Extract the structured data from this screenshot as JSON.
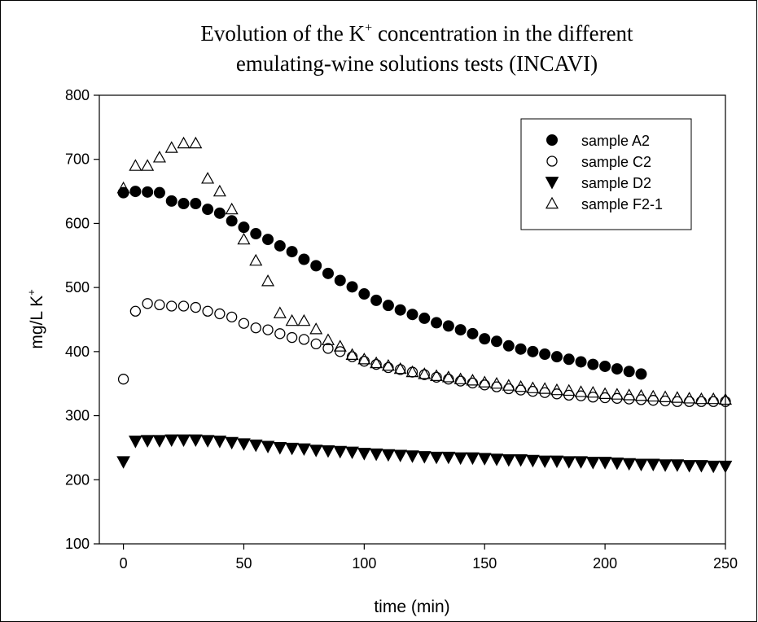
{
  "chart_data": {
    "type": "scatter",
    "title": {
      "line1_before": "Evolution of the K",
      "line1_sup": "+",
      "line1_after": " concentration in the different",
      "line2": "emulating-wine solutions tests (INCAVI)"
    },
    "xlabel": "time (min)",
    "ylabel": {
      "main": "mg/L K",
      "sup": "+"
    },
    "xlim": [
      -10,
      250
    ],
    "ylim": [
      100,
      800
    ],
    "xticks": [
      0,
      50,
      100,
      150,
      200,
      250
    ],
    "yticks": [
      100,
      200,
      300,
      400,
      500,
      600,
      700,
      800
    ],
    "grid": false,
    "legend_position": "top-right",
    "series": [
      {
        "name": "sample A2",
        "marker": "filled-circle",
        "x": [
          0,
          5,
          10,
          15,
          20,
          25,
          30,
          35,
          40,
          45,
          50,
          55,
          60,
          65,
          70,
          75,
          80,
          85,
          90,
          95,
          100,
          105,
          110,
          115,
          120,
          125,
          130,
          135,
          140,
          145,
          150,
          155,
          160,
          165,
          170,
          175,
          180,
          185,
          190,
          195,
          200,
          205,
          210,
          215
        ],
        "y": [
          648,
          650,
          649,
          648,
          635,
          631,
          631,
          622,
          616,
          604,
          594,
          584,
          575,
          565,
          556,
          544,
          534,
          522,
          511,
          501,
          490,
          480,
          472,
          465,
          458,
          452,
          445,
          440,
          434,
          428,
          420,
          416,
          409,
          404,
          400,
          396,
          392,
          388,
          384,
          380,
          377,
          373,
          369,
          365
        ]
      },
      {
        "name": "sample C2",
        "marker": "open-circle",
        "x": [
          0,
          5,
          10,
          15,
          20,
          25,
          30,
          35,
          40,
          45,
          50,
          55,
          60,
          65,
          70,
          75,
          80,
          85,
          90,
          95,
          100,
          105,
          110,
          115,
          120,
          125,
          130,
          135,
          140,
          145,
          150,
          155,
          160,
          165,
          170,
          175,
          180,
          185,
          190,
          195,
          200,
          205,
          210,
          215,
          220,
          225,
          230,
          235,
          240,
          245,
          250
        ],
        "y": [
          357,
          463,
          475,
          473,
          471,
          471,
          469,
          463,
          459,
          454,
          444,
          437,
          434,
          428,
          422,
          419,
          412,
          405,
          400,
          392,
          385,
          380,
          375,
          372,
          368,
          364,
          360,
          357,
          354,
          351,
          348,
          345,
          342,
          340,
          338,
          336,
          334,
          332,
          331,
          329,
          328,
          327,
          326,
          325,
          324,
          323,
          322,
          322,
          322,
          322,
          322
        ]
      },
      {
        "name": "sample D2",
        "marker": "filled-triangle-down",
        "x": [
          0,
          5,
          10,
          15,
          20,
          25,
          30,
          35,
          40,
          45,
          50,
          55,
          60,
          65,
          70,
          75,
          80,
          85,
          90,
          95,
          100,
          105,
          110,
          115,
          120,
          125,
          130,
          135,
          140,
          145,
          150,
          155,
          160,
          165,
          170,
          175,
          180,
          185,
          190,
          195,
          200,
          205,
          210,
          215,
          220,
          225,
          230,
          235,
          240,
          245,
          250
        ],
        "y": [
          228,
          260,
          261,
          261,
          262,
          262,
          262,
          261,
          260,
          258,
          256,
          254,
          252,
          250,
          249,
          248,
          246,
          245,
          244,
          243,
          241,
          240,
          239,
          238,
          237,
          236,
          235,
          235,
          234,
          234,
          233,
          232,
          231,
          231,
          230,
          229,
          229,
          228,
          228,
          227,
          227,
          226,
          225,
          224,
          224,
          223,
          223,
          222,
          222,
          221,
          221
        ]
      },
      {
        "name": "sample F2-1",
        "marker": "open-triangle-up",
        "x": [
          0,
          5,
          10,
          15,
          20,
          25,
          30,
          35,
          40,
          45,
          50,
          55,
          60,
          65,
          70,
          75,
          80,
          85,
          90,
          95,
          100,
          105,
          110,
          115,
          120,
          125,
          130,
          135,
          140,
          145,
          150,
          155,
          160,
          165,
          170,
          175,
          180,
          185,
          190,
          195,
          200,
          205,
          210,
          215,
          220,
          225,
          230,
          235,
          240,
          245,
          250
        ],
        "y": [
          655,
          690,
          690,
          703,
          718,
          725,
          725,
          670,
          650,
          622,
          575,
          542,
          510,
          460,
          448,
          448,
          435,
          418,
          408,
          395,
          388,
          382,
          378,
          373,
          368,
          365,
          362,
          360,
          357,
          355,
          352,
          350,
          347,
          345,
          343,
          342,
          340,
          339,
          337,
          336,
          334,
          333,
          332,
          331,
          330,
          329,
          328,
          327,
          326,
          326,
          325
        ]
      }
    ]
  }
}
